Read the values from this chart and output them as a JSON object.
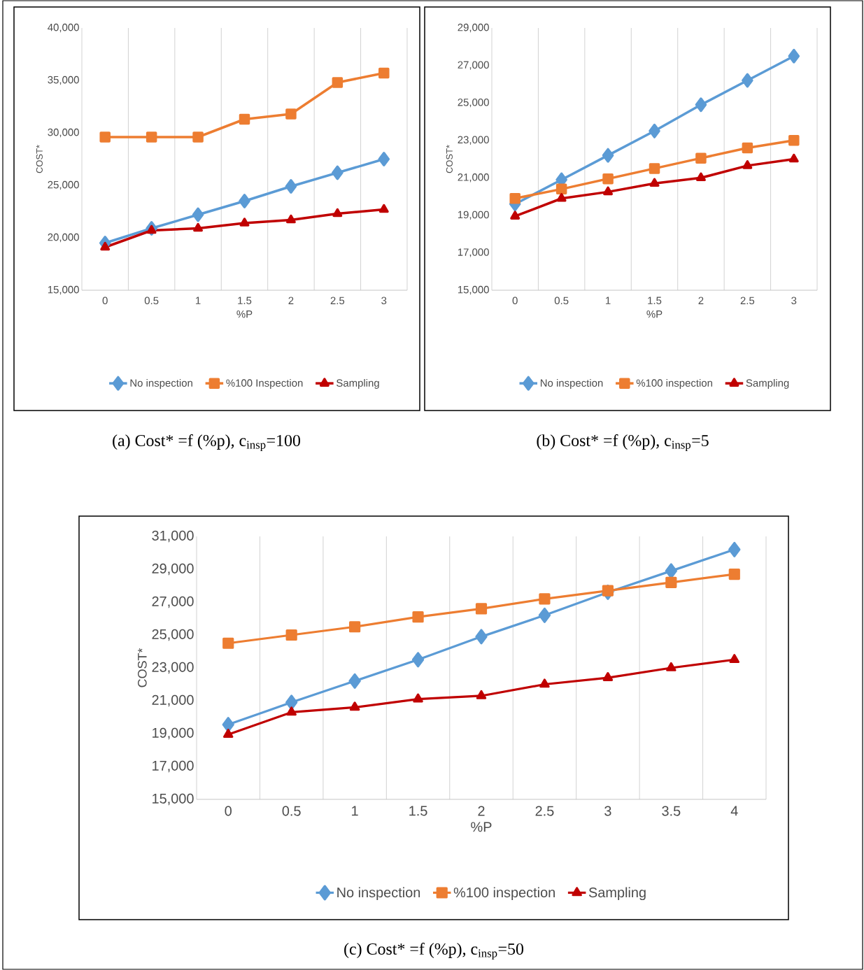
{
  "chart_data": [
    {
      "type": "line",
      "title": "(a) Cost* =f (%p), c$_{insp}$=100",
      "xlabel": "%P",
      "ylabel": "COST*",
      "categories": [
        "0",
        "0.5",
        "1",
        "1.5",
        "2",
        "2.5",
        "3"
      ],
      "series": [
        {
          "name": "No inspection",
          "color": "#5b9bd5",
          "marker": "diamond",
          "values": [
            19500,
            20900,
            22200,
            23500,
            24900,
            26200,
            27500
          ]
        },
        {
          "name": "%100 Inspection",
          "color": "#ed7d31",
          "marker": "square",
          "values": [
            29600,
            29600,
            29600,
            31300,
            31800,
            34800,
            35700
          ]
        },
        {
          "name": "Sampling",
          "color": "#c00000",
          "marker": "triangle",
          "values": [
            19100,
            20700,
            20900,
            21400,
            21700,
            22300,
            22700
          ]
        }
      ],
      "ylim": [
        15000,
        40000
      ],
      "yticks": [
        {
          "value": 15000,
          "label": "15,000"
        },
        {
          "value": 20000,
          "label": "20,000"
        },
        {
          "value": 25000,
          "label": "25,000"
        },
        {
          "value": 30000,
          "label": "30,000"
        },
        {
          "value": 35000,
          "label": "35,000"
        },
        {
          "value": 40000,
          "label": "40,000"
        }
      ],
      "grid": "x",
      "legend": "bottom"
    },
    {
      "type": "line",
      "title": "(b) Cost* =f (%p), c$_{insp}$=5",
      "xlabel": "%P",
      "ylabel": "COST*",
      "categories": [
        "0",
        "0.5",
        "1",
        "1.5",
        "2",
        "2.5",
        "3"
      ],
      "series": [
        {
          "name": "No inspection",
          "color": "#5b9bd5",
          "marker": "diamond",
          "values": [
            19600,
            20900,
            22200,
            23500,
            24900,
            26200,
            27500
          ]
        },
        {
          "name": "%100 inspection",
          "color": "#ed7d31",
          "marker": "square",
          "values": [
            19900,
            20400,
            20950,
            21500,
            22050,
            22600,
            23000
          ]
        },
        {
          "name": "Sampling",
          "color": "#c00000",
          "marker": "triangle",
          "values": [
            18950,
            19900,
            20250,
            20700,
            21000,
            21650,
            22000
          ]
        }
      ],
      "ylim": [
        15000,
        29000
      ],
      "yticks": [
        {
          "value": 15000,
          "label": "15,000"
        },
        {
          "value": 17000,
          "label": "17,000"
        },
        {
          "value": 19000,
          "label": "19,000"
        },
        {
          "value": 21000,
          "label": "21,000"
        },
        {
          "value": 23000,
          "label": "23,000"
        },
        {
          "value": 25000,
          "label": "25,000"
        },
        {
          "value": 27000,
          "label": "27,000"
        },
        {
          "value": 29000,
          "label": "29,000"
        }
      ],
      "grid": "x",
      "legend": "bottom"
    },
    {
      "type": "line",
      "title": "(c) Cost* =f (%p), c$_{insp}$=50",
      "xlabel": "%P",
      "ylabel": "COST*",
      "categories": [
        "0",
        "0.5",
        "1",
        "1.5",
        "2",
        "2.5",
        "3",
        "3.5",
        "4"
      ],
      "series": [
        {
          "name": "No inspection",
          "color": "#5b9bd5",
          "marker": "diamond",
          "values": [
            19550,
            20900,
            22200,
            23500,
            24900,
            26200,
            27600,
            28900,
            30200
          ]
        },
        {
          "name": "%100 inspection",
          "color": "#ed7d31",
          "marker": "square",
          "values": [
            24500,
            25000,
            25500,
            26100,
            26600,
            27200,
            27700,
            28200,
            28700
          ]
        },
        {
          "name": "Sampling",
          "color": "#c00000",
          "marker": "triangle",
          "values": [
            18950,
            20300,
            20600,
            21100,
            21300,
            22000,
            22400,
            23000,
            23500
          ]
        }
      ],
      "ylim": [
        15000,
        31000
      ],
      "yticks": [
        {
          "value": 15000,
          "label": "15,000"
        },
        {
          "value": 17000,
          "label": "17,000"
        },
        {
          "value": 19000,
          "label": "19,000"
        },
        {
          "value": 21000,
          "label": "21,000"
        },
        {
          "value": 23000,
          "label": "23,000"
        },
        {
          "value": 25000,
          "label": "25,000"
        },
        {
          "value": 27000,
          "label": "27,000"
        },
        {
          "value": 29000,
          "label": "29,000"
        },
        {
          "value": 31000,
          "label": "31,000"
        }
      ],
      "grid": "x",
      "legend": "bottom"
    }
  ]
}
